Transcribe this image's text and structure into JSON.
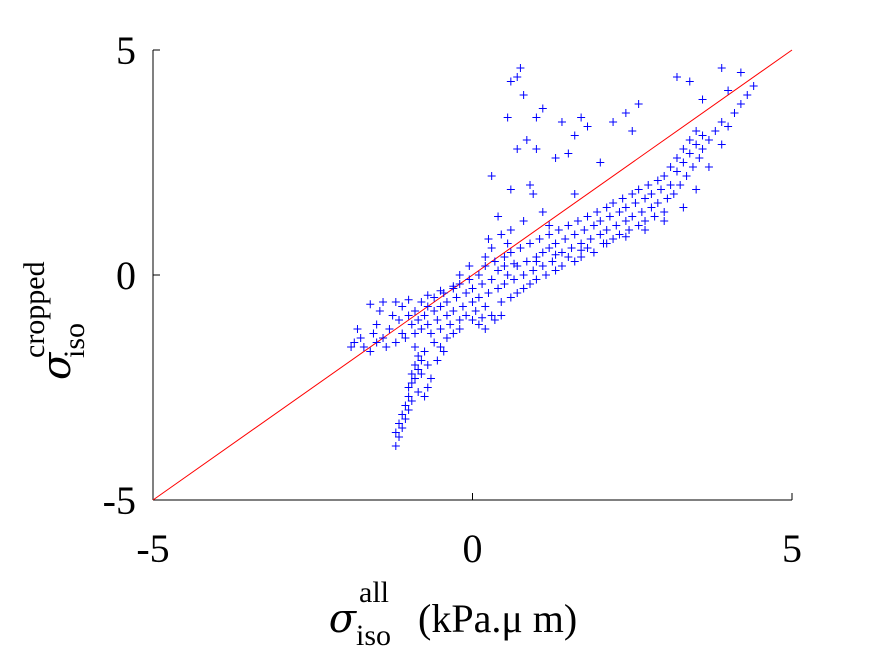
{
  "chart_data": {
    "type": "scatter",
    "title": "",
    "xlabel": {
      "symbol": "σ",
      "superscript": "all",
      "subscript": "iso",
      "units": "(kPa.μ m)"
    },
    "ylabel": {
      "symbol": "σ",
      "superscript": "cropped",
      "subscript": "iso"
    },
    "xlim": [
      -5,
      5
    ],
    "ylim": [
      -5,
      5
    ],
    "xticks": [
      -5,
      0,
      5
    ],
    "yticks": [
      -5,
      0,
      5
    ],
    "xtick_labels": [
      "-5",
      "0",
      "5"
    ],
    "ytick_labels": [
      "-5",
      "0",
      "5"
    ],
    "grid": false,
    "legend": "none",
    "marker": "+",
    "series": [
      {
        "color": "#0000ff",
        "points": [
          [
            -1.9,
            -1.6
          ],
          [
            -1.85,
            -1.5
          ],
          [
            -1.8,
            -1.2
          ],
          [
            -1.75,
            -1.4
          ],
          [
            -1.7,
            -1.6
          ],
          [
            -1.6,
            -1.7
          ],
          [
            -1.55,
            -1.3
          ],
          [
            -1.5,
            -1.1
          ],
          [
            -1.5,
            -1.5
          ],
          [
            -1.45,
            -0.8
          ],
          [
            -1.4,
            -1.4
          ],
          [
            -1.35,
            -1.6
          ],
          [
            -1.3,
            -1.2
          ],
          [
            -1.25,
            -0.9
          ],
          [
            -1.2,
            -1.5
          ],
          [
            -1.15,
            -1.0
          ],
          [
            -1.1,
            -0.7
          ],
          [
            -1.1,
            -1.3
          ],
          [
            -1.05,
            -1.4
          ],
          [
            -1.0,
            -0.9
          ],
          [
            -0.95,
            -1.1
          ],
          [
            -0.9,
            -1.3
          ],
          [
            -0.9,
            -0.8
          ],
          [
            -0.85,
            -1.0
          ],
          [
            -0.8,
            -0.6
          ],
          [
            -0.8,
            -1.2
          ],
          [
            -0.75,
            -0.9
          ],
          [
            -0.7,
            -1.1
          ],
          [
            -0.7,
            -0.7
          ],
          [
            -0.65,
            -1.3
          ],
          [
            -0.6,
            -0.8
          ],
          [
            -0.6,
            -0.5
          ],
          [
            -0.55,
            -1.0
          ],
          [
            -0.5,
            -0.7
          ],
          [
            -0.5,
            -1.2
          ],
          [
            -0.45,
            -0.4
          ],
          [
            -0.4,
            -0.9
          ],
          [
            -0.4,
            -0.6
          ],
          [
            -0.35,
            -1.1
          ],
          [
            -0.3,
            -0.3
          ],
          [
            -0.3,
            -0.8
          ],
          [
            -0.25,
            -0.5
          ],
          [
            -0.2,
            -1.0
          ],
          [
            -0.2,
            -0.2
          ],
          [
            -0.15,
            -0.7
          ],
          [
            -0.1,
            -0.4
          ],
          [
            -0.1,
            -0.9
          ],
          [
            -0.05,
            -0.1
          ],
          [
            0.0,
            -0.6
          ],
          [
            0.0,
            -0.3
          ],
          [
            0.05,
            -0.8
          ],
          [
            0.1,
            0.0
          ],
          [
            0.1,
            -0.5
          ],
          [
            0.15,
            -0.2
          ],
          [
            0.2,
            -0.7
          ],
          [
            0.2,
            0.2
          ],
          [
            0.25,
            -0.4
          ],
          [
            0.3,
            -0.1
          ],
          [
            0.3,
            -0.9
          ],
          [
            0.35,
            0.3
          ],
          [
            0.4,
            -0.3
          ],
          [
            0.4,
            0.1
          ],
          [
            0.45,
            -0.6
          ],
          [
            0.5,
            0.4
          ],
          [
            0.5,
            -0.2
          ],
          [
            0.55,
            0.0
          ],
          [
            0.6,
            -0.5
          ],
          [
            0.6,
            0.5
          ],
          [
            0.65,
            -0.1
          ],
          [
            0.7,
            0.2
          ],
          [
            0.7,
            -0.4
          ],
          [
            0.75,
            0.6
          ],
          [
            0.8,
            0.0
          ],
          [
            0.8,
            -0.3
          ],
          [
            0.85,
            0.3
          ],
          [
            0.9,
            0.7
          ],
          [
            0.9,
            -0.2
          ],
          [
            0.95,
            0.1
          ],
          [
            1.0,
            0.4
          ],
          [
            1.0,
            -0.1
          ],
          [
            1.05,
            0.8
          ],
          [
            1.1,
            0.2
          ],
          [
            1.1,
            0.5
          ],
          [
            1.15,
            0.0
          ],
          [
            1.2,
            0.6
          ],
          [
            1.2,
            0.9
          ],
          [
            1.25,
            0.3
          ],
          [
            1.3,
            0.7
          ],
          [
            1.3,
            0.1
          ],
          [
            1.35,
            1.0
          ],
          [
            1.4,
            0.5
          ],
          [
            1.4,
            0.2
          ],
          [
            1.45,
            0.8
          ],
          [
            1.5,
            0.4
          ],
          [
            1.5,
            1.1
          ],
          [
            1.55,
            0.6
          ],
          [
            1.6,
            0.3
          ],
          [
            1.6,
            0.9
          ],
          [
            1.65,
            1.2
          ],
          [
            1.7,
            0.7
          ],
          [
            1.7,
            0.4
          ],
          [
            1.75,
            1.0
          ],
          [
            1.8,
            0.6
          ],
          [
            1.8,
            1.3
          ],
          [
            1.85,
            0.8
          ],
          [
            1.9,
            1.1
          ],
          [
            1.9,
            0.5
          ],
          [
            1.95,
            1.4
          ],
          [
            2.0,
            0.9
          ],
          [
            2.0,
            1.2
          ],
          [
            2.05,
            0.7
          ],
          [
            2.1,
            1.5
          ],
          [
            2.1,
            1.0
          ],
          [
            2.15,
            1.3
          ],
          [
            2.2,
            0.8
          ],
          [
            2.2,
            1.6
          ],
          [
            2.25,
            1.1
          ],
          [
            2.3,
            1.4
          ],
          [
            2.3,
            0.9
          ],
          [
            2.35,
            1.7
          ],
          [
            2.4,
            1.2
          ],
          [
            2.4,
            1.5
          ],
          [
            2.45,
            1.0
          ],
          [
            2.5,
            1.8
          ],
          [
            2.5,
            1.3
          ],
          [
            2.55,
            1.6
          ],
          [
            2.6,
            1.1
          ],
          [
            2.6,
            1.9
          ],
          [
            2.65,
            1.4
          ],
          [
            2.7,
            1.7
          ],
          [
            2.7,
            1.2
          ],
          [
            2.75,
            2.0
          ],
          [
            2.8,
            1.5
          ],
          [
            2.8,
            1.8
          ],
          [
            2.85,
            1.3
          ],
          [
            2.9,
            2.1
          ],
          [
            2.9,
            1.6
          ],
          [
            2.95,
            1.9
          ],
          [
            3.0,
            1.4
          ],
          [
            3.0,
            2.2
          ],
          [
            3.05,
            1.7
          ],
          [
            3.1,
            2.0
          ],
          [
            3.1,
            2.4
          ],
          [
            3.15,
            1.8
          ],
          [
            3.2,
            2.3
          ],
          [
            3.2,
            2.6
          ],
          [
            3.25,
            2.0
          ],
          [
            3.3,
            2.5
          ],
          [
            3.3,
            2.8
          ],
          [
            3.35,
            2.2
          ],
          [
            3.4,
            2.7
          ],
          [
            3.4,
            3.0
          ],
          [
            3.45,
            2.4
          ],
          [
            3.5,
            2.9
          ],
          [
            3.5,
            3.2
          ],
          [
            3.55,
            2.6
          ],
          [
            3.6,
            3.1
          ],
          [
            3.6,
            2.8
          ],
          [
            3.7,
            3.0
          ],
          [
            3.8,
            3.2
          ],
          [
            3.9,
            3.4
          ],
          [
            4.0,
            3.3
          ],
          [
            4.1,
            3.6
          ],
          [
            4.2,
            3.8
          ],
          [
            4.3,
            4.0
          ],
          [
            4.4,
            4.2
          ],
          [
            4.0,
            4.1
          ],
          [
            4.2,
            4.5
          ],
          [
            3.9,
            4.6
          ],
          [
            3.2,
            4.4
          ],
          [
            3.4,
            4.3
          ],
          [
            3.6,
            3.9
          ],
          [
            2.6,
            3.8
          ],
          [
            2.4,
            3.6
          ],
          [
            2.2,
            3.4
          ],
          [
            2.5,
            3.2
          ],
          [
            1.8,
            3.3
          ],
          [
            1.6,
            3.1
          ],
          [
            1.7,
            3.5
          ],
          [
            1.4,
            3.4
          ],
          [
            1.1,
            3.7
          ],
          [
            1.0,
            3.5
          ],
          [
            0.8,
            4.0
          ],
          [
            0.7,
            4.4
          ],
          [
            0.75,
            4.6
          ],
          [
            0.6,
            4.3
          ],
          [
            0.55,
            3.5
          ],
          [
            0.85,
            3.0
          ],
          [
            0.7,
            2.8
          ],
          [
            1.0,
            2.8
          ],
          [
            1.5,
            2.7
          ],
          [
            1.3,
            2.6
          ],
          [
            2.0,
            2.5
          ],
          [
            0.9,
            2.0
          ],
          [
            0.95,
            1.8
          ],
          [
            0.6,
            1.9
          ],
          [
            0.3,
            2.2
          ],
          [
            1.1,
            1.4
          ],
          [
            1.6,
            1.8
          ],
          [
            0.4,
            1.3
          ],
          [
            0.6,
            1.0
          ],
          [
            0.8,
            1.2
          ],
          [
            1.2,
            1.1
          ],
          [
            0.55,
            0.7
          ],
          [
            0.45,
            0.9
          ],
          [
            0.3,
            0.6
          ],
          [
            0.2,
            0.4
          ],
          [
            0.25,
            0.8
          ],
          [
            -0.05,
            0.2
          ],
          [
            -0.2,
            0.0
          ],
          [
            -0.9,
            -1.6
          ],
          [
            -0.85,
            -1.8
          ],
          [
            -0.8,
            -1.9
          ],
          [
            -0.9,
            -2.0
          ],
          [
            -0.85,
            -2.1
          ],
          [
            -0.95,
            -2.2
          ],
          [
            -0.9,
            -2.3
          ],
          [
            -0.8,
            -2.2
          ],
          [
            -0.95,
            -2.4
          ],
          [
            -1.0,
            -2.5
          ],
          [
            -0.85,
            -2.6
          ],
          [
            -1.0,
            -2.7
          ],
          [
            -0.95,
            -2.8
          ],
          [
            -1.05,
            -2.9
          ],
          [
            -1.0,
            -3.0
          ],
          [
            -1.1,
            -3.1
          ],
          [
            -1.05,
            -3.2
          ],
          [
            -1.15,
            -3.3
          ],
          [
            -1.1,
            -3.4
          ],
          [
            -1.2,
            -3.5
          ],
          [
            -1.15,
            -3.6
          ],
          [
            -1.2,
            -3.8
          ],
          [
            -0.7,
            -2.0
          ],
          [
            -0.75,
            -1.7
          ],
          [
            -0.6,
            -1.5
          ],
          [
            -0.5,
            -1.6
          ],
          [
            -0.4,
            -1.4
          ],
          [
            -0.3,
            -1.3
          ],
          [
            -0.2,
            -1.2
          ],
          [
            -0.55,
            -1.9
          ],
          [
            -0.45,
            -1.7
          ],
          [
            -0.65,
            -2.3
          ],
          [
            -0.7,
            -2.5
          ],
          [
            -0.75,
            -2.7
          ],
          [
            0.0,
            -1.0
          ],
          [
            0.1,
            -1.1
          ],
          [
            0.2,
            -1.2
          ],
          [
            0.35,
            -1.0
          ],
          [
            0.45,
            -0.9
          ],
          [
            0.15,
            -0.95
          ],
          [
            -1.6,
            -0.65
          ],
          [
            -1.4,
            -0.6
          ],
          [
            -1.2,
            -0.6
          ],
          [
            -1.0,
            -0.55
          ],
          [
            -0.7,
            -0.45
          ],
          [
            -0.5,
            -0.35
          ],
          [
            -0.3,
            -0.25
          ],
          [
            0.5,
            0.2
          ],
          [
            0.65,
            0.25
          ],
          [
            1.0,
            0.3
          ],
          [
            1.3,
            0.45
          ],
          [
            1.7,
            0.55
          ],
          [
            2.1,
            0.7
          ],
          [
            2.4,
            0.85
          ],
          [
            2.7,
            1.0
          ],
          [
            3.0,
            1.2
          ],
          [
            3.3,
            1.5
          ],
          [
            3.5,
            1.9
          ],
          [
            3.7,
            2.4
          ],
          [
            3.9,
            2.9
          ]
        ]
      }
    ],
    "reference_line": {
      "x": [
        -5,
        5
      ],
      "y": [
        -5,
        5
      ],
      "color": "#ff0000"
    }
  }
}
